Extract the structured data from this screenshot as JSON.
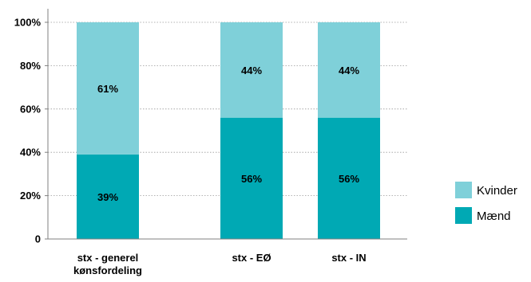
{
  "chart_data": {
    "type": "bar",
    "stacked": true,
    "categories": [
      [
        "stx - generel",
        "kønsfordeling"
      ],
      [
        "stx - EØ"
      ],
      [
        "stx - IN"
      ]
    ],
    "series": [
      {
        "name": "Mænd",
        "values": [
          39,
          56,
          56
        ],
        "labels": [
          "39%",
          "56%",
          "56%"
        ],
        "color": "#00a9b4"
      },
      {
        "name": "Kvinder",
        "values": [
          61,
          44,
          44
        ],
        "labels": [
          "61%",
          "44%",
          "44%"
        ],
        "color": "#7fd0d9"
      }
    ],
    "y_ticks": [
      {
        "value": 0,
        "label": "0"
      },
      {
        "value": 20,
        "label": "20%"
      },
      {
        "value": 40,
        "label": "40%"
      },
      {
        "value": 60,
        "label": "60%"
      },
      {
        "value": 80,
        "label": "80%"
      },
      {
        "value": 100,
        "label": "100%"
      }
    ],
    "ylim": [
      0,
      100
    ],
    "grid": true,
    "legend_position": "right",
    "legend_order": [
      "Kvinder",
      "Mænd"
    ]
  }
}
